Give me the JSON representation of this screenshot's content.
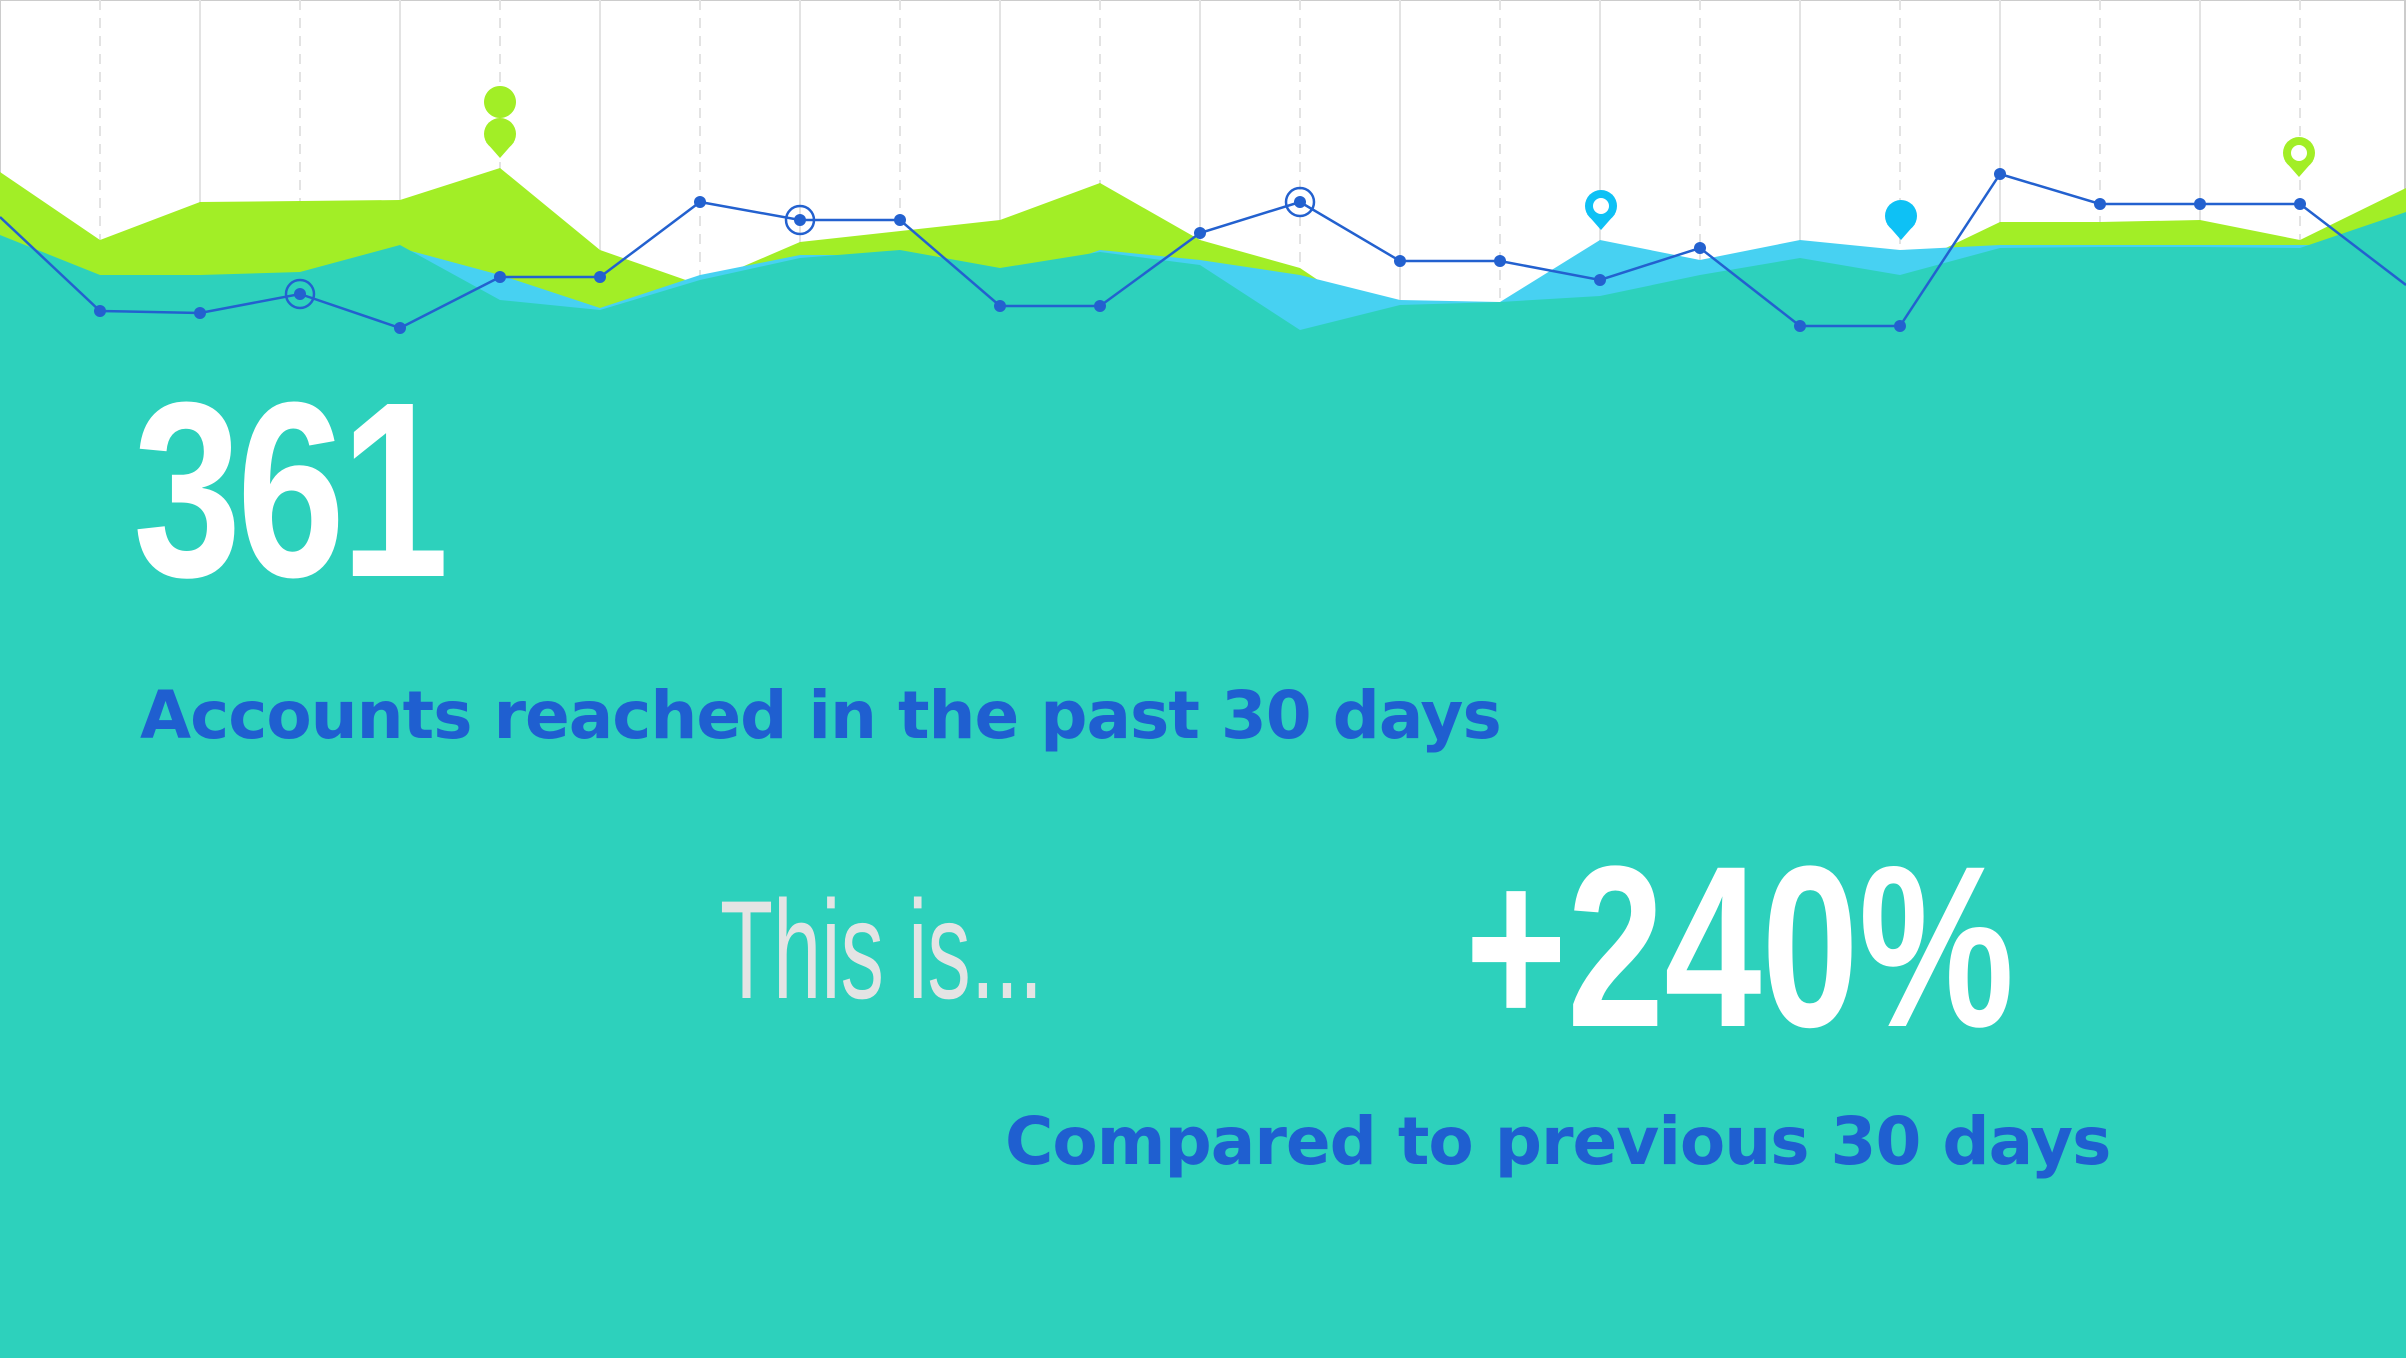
{
  "stats": {
    "accounts_value": "361",
    "accounts_label": "Accounts reached in the past 30 days",
    "this_is": "This is...",
    "change_value": "+240%",
    "change_label": "Compared to previous 30 days"
  },
  "colors": {
    "background": "#2dd1bc",
    "green_area": "#a2ee26",
    "blue_area": "#47d1f2",
    "line": "#2361cf",
    "text_blue": "#1f5fd0",
    "text_white": "#ffffff",
    "text_light": "#e4e4e4"
  },
  "icons": [
    "location-pin-icon",
    "target-marker-icon"
  ]
}
